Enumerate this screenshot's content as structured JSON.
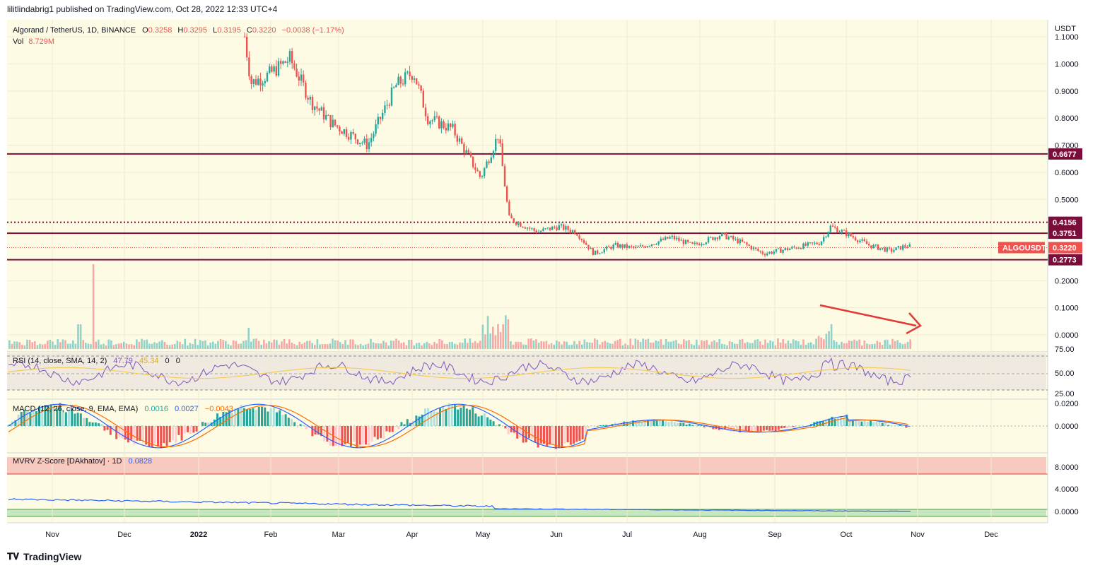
{
  "header": {
    "publisher_line": "lilitlindabrig1 published on TradingView.com, Oct 28, 2022 12:33 UTC+4"
  },
  "footer": {
    "logo_text": "TradingView"
  },
  "colors": {
    "background": "#fdfbe4",
    "up": "#26a69a",
    "down": "#ef5350",
    "level_line": "#7b0d3a",
    "rsi_line": "#7e57c2",
    "rsi_sma": "#f5c842",
    "macd_line": "#2962ff",
    "signal_line": "#ff6d00",
    "mvrv_line": "#2962ff",
    "arrow": "#e53935"
  },
  "chart_data": [
    {
      "type": "candlestick",
      "pane": "price",
      "title": "Algorand / TetherUS, 1D, BINANCE",
      "ohlc_legend": {
        "o_label": "O",
        "o": "0.3258",
        "h_label": "H",
        "h": "0.3295",
        "l_label": "L",
        "l": "0.3195",
        "c_label": "C",
        "c": "0.3220",
        "change": "−0.0038 (−1.17%)"
      },
      "volume_legend": {
        "label": "Vol",
        "value": "8.729M"
      },
      "currency_label": "USDT",
      "y_ticks": [
        "1.1000",
        "1.0000",
        "0.9000",
        "0.8000",
        "0.7000",
        "0.6000",
        "0.5000",
        "0.2000",
        "0.1000",
        "0.0000"
      ],
      "x_ticks": [
        "Nov",
        "Dec",
        "2022",
        "Feb",
        "Mar",
        "Apr",
        "May",
        "Jun",
        "Jul",
        "Aug",
        "Sep",
        "Oct",
        "Nov",
        "Dec"
      ],
      "levels": [
        {
          "value": 0.6677,
          "label": "0.6677",
          "style": "solid"
        },
        {
          "value": 0.4156,
          "label": "0.4156",
          "style": "dotted"
        },
        {
          "value": 0.3751,
          "label": "0.3751",
          "style": "solid"
        },
        {
          "value": 0.2773,
          "label": "0.2773",
          "style": "solid"
        }
      ],
      "last_price": {
        "symbol": "ALGOUSDT",
        "value": "0.3220"
      },
      "series": [
        {
          "month": "Jan 2022 (late)",
          "approx_close": 1.1
        },
        {
          "month": "Feb",
          "approx_close": 0.95
        },
        {
          "month": "Mar",
          "approx_close": 0.78
        },
        {
          "month": "Apr",
          "approx_close": 0.93
        },
        {
          "month": "May",
          "approx_close": 0.45
        },
        {
          "month": "Jun",
          "approx_close": 0.31
        },
        {
          "month": "Jul",
          "approx_close": 0.33
        },
        {
          "month": "Aug",
          "approx_close": 0.34
        },
        {
          "month": "Sep",
          "approx_close": 0.31
        },
        {
          "month": "Oct",
          "approx_close": 0.32
        }
      ],
      "annotation": "arrow"
    },
    {
      "type": "line",
      "pane": "rsi",
      "legend": {
        "label": "RSI (14, close, SMA, 14, 2)",
        "v1": "47.79",
        "v2": "45.34",
        "v3": "0",
        "v4": "0"
      },
      "y_ticks": [
        "75.00",
        "50.00",
        "25.00"
      ]
    },
    {
      "type": "bar",
      "pane": "macd",
      "legend": {
        "label": "MACD (12, 26, close, 9, EMA, EMA)",
        "v1": "0.0016",
        "v2": "0.0027",
        "v3": "−0.0043"
      },
      "y_ticks": [
        "0.0200",
        "0.0000"
      ]
    },
    {
      "type": "line",
      "pane": "mvrv",
      "legend": {
        "label": "MVRV Z-Score [DAkhatov] · 1D",
        "v1": "0.0828"
      },
      "y_ticks": [
        "8.0000",
        "4.0000",
        "0.0000"
      ]
    }
  ]
}
